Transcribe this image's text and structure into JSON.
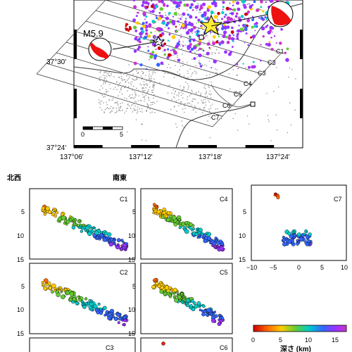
{
  "map": {
    "lat_labels": [
      "37°30'",
      "37°24'"
    ],
    "lon_labels": [
      "137°06'",
      "137°12'",
      "137°18'",
      "137°24'"
    ],
    "profile_labels": [
      "C1",
      "C2",
      "C3",
      "C4",
      "C5",
      "C6",
      "C7"
    ],
    "event_label": "M5.9",
    "scale_bar": {
      "start": "0",
      "end": "5"
    }
  },
  "cross_sections": {
    "dir_left": "北西",
    "dir_right": "南東",
    "panels": [
      {
        "label": "C1",
        "y_ticks": [
          "5",
          "10",
          "15"
        ],
        "x_ticks": []
      },
      {
        "label": "C4",
        "y_ticks": [
          "5",
          "10",
          "15"
        ],
        "x_ticks": []
      },
      {
        "label": "C7",
        "y_ticks": [
          "5",
          "10",
          "15"
        ],
        "x_ticks": [
          "−10",
          "−5",
          "0",
          "5",
          "10"
        ]
      },
      {
        "label": "C2",
        "y_ticks": [
          "5",
          "10",
          "15"
        ],
        "x_ticks": []
      },
      {
        "label": "C5",
        "y_ticks": [
          "5",
          "10",
          "15"
        ],
        "x_ticks": []
      },
      {
        "label": "C3",
        "y_ticks": [],
        "x_ticks": []
      },
      {
        "label": "C6",
        "y_ticks": [],
        "x_ticks": []
      }
    ]
  },
  "colorbar": {
    "ticks": [
      "0",
      "5",
      "10",
      "15"
    ],
    "label": "深さ (km)",
    "stops": [
      "#cc0000",
      "#ff6600",
      "#ffcc00",
      "#66cc33",
      "#00cccc",
      "#3366ff",
      "#9933ff",
      "#cc33cc"
    ]
  }
}
